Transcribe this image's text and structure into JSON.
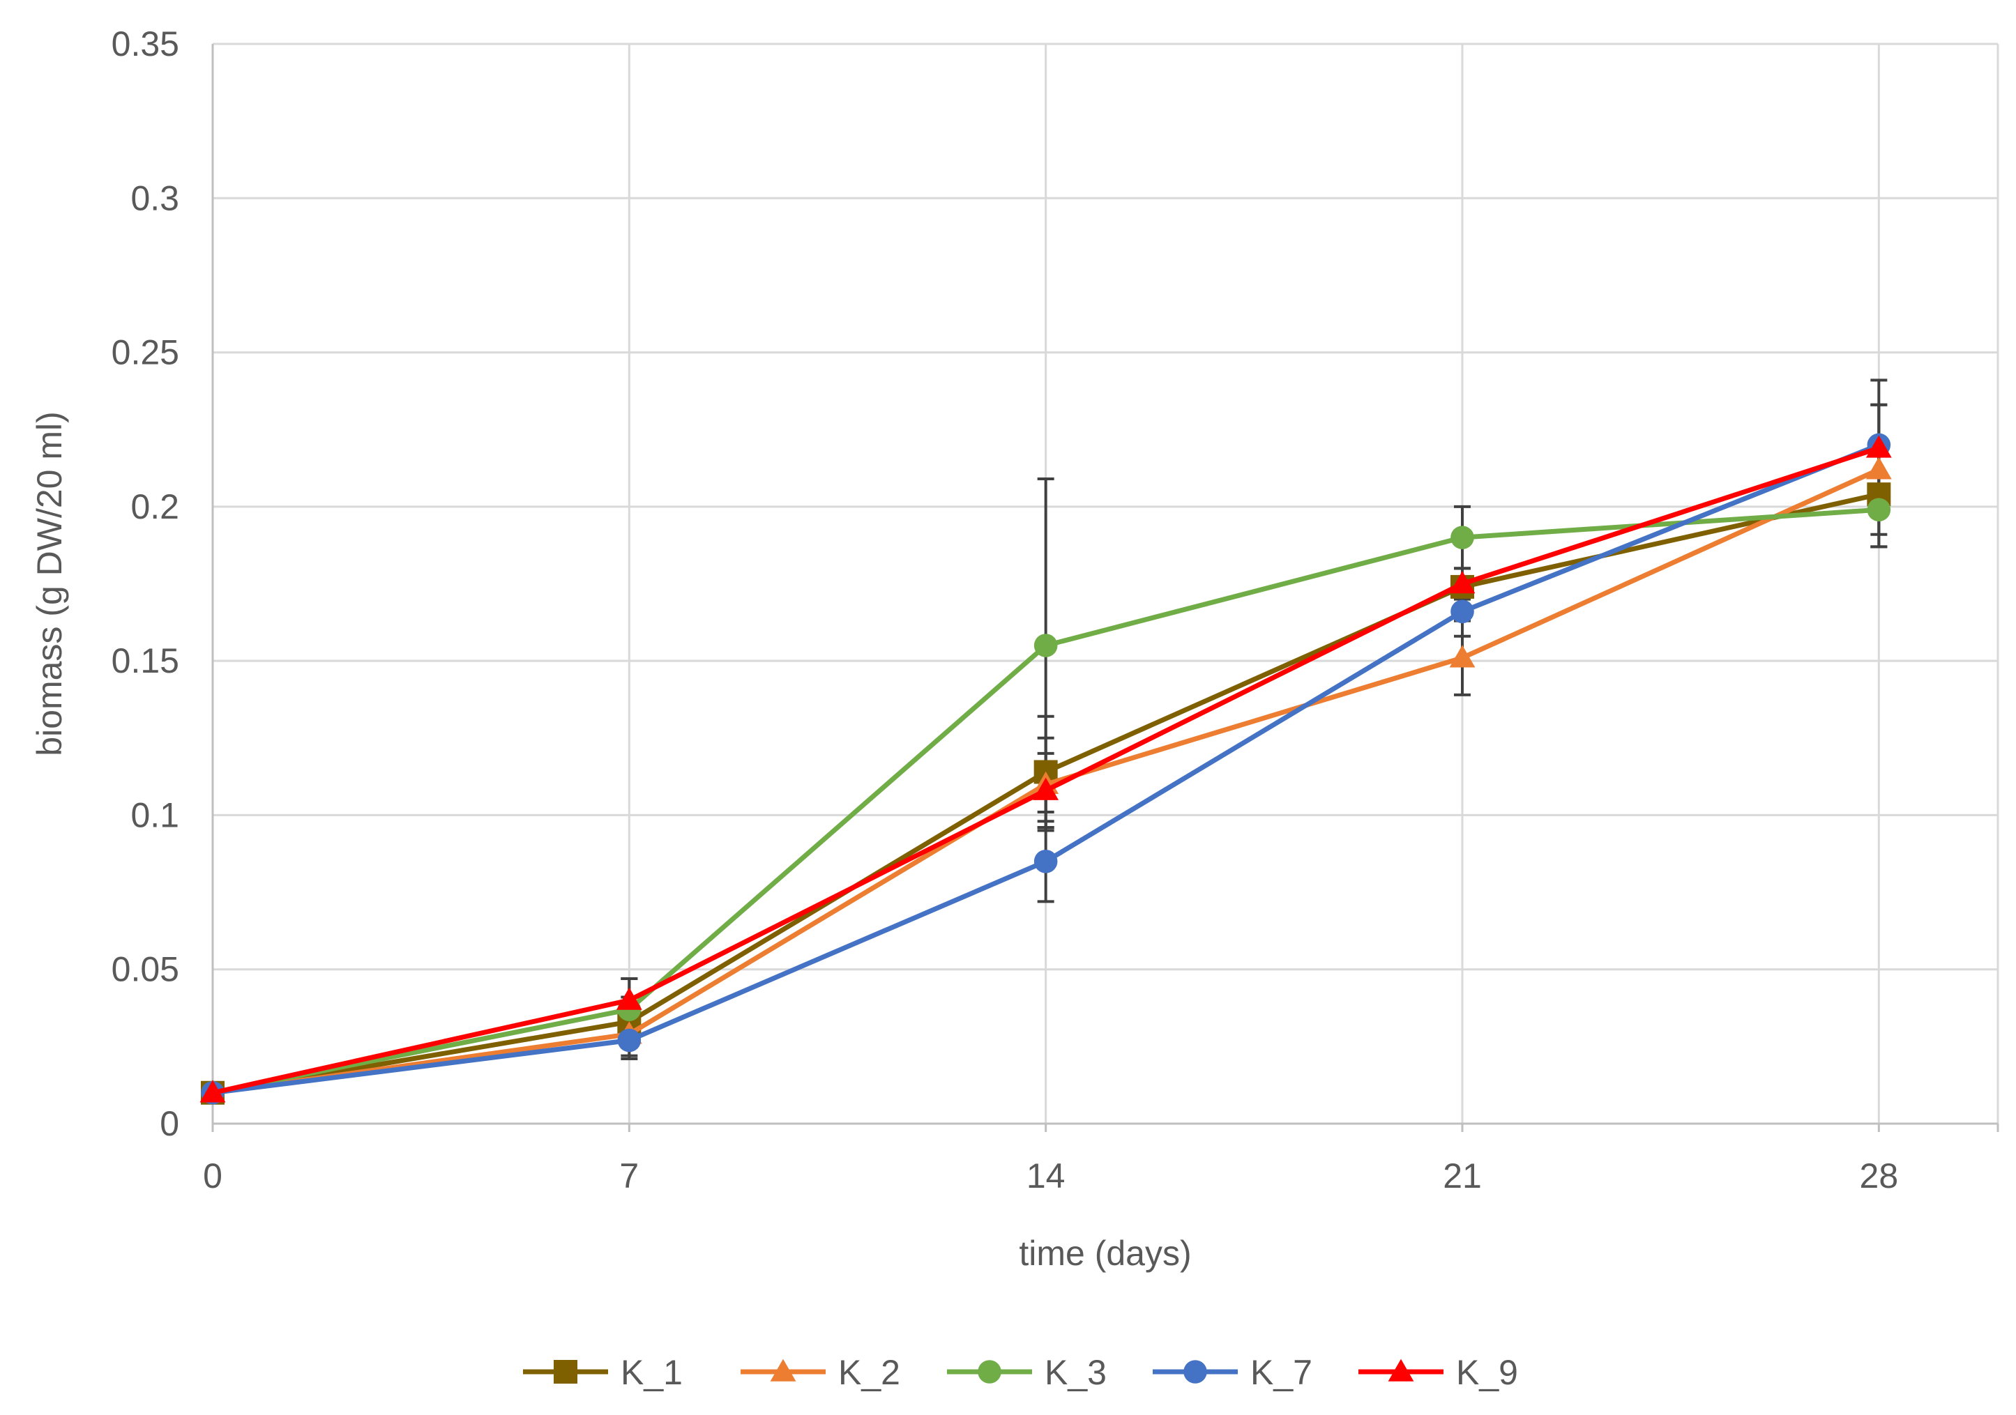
{
  "chart_data": {
    "type": "line",
    "xlabel": "time (days)",
    "ylabel": "biomass (g DW/20 ml)",
    "x": [
      0,
      7,
      14,
      21,
      28
    ],
    "xlim": [
      0,
      30
    ],
    "ylim": [
      0,
      0.35
    ],
    "x_ticks": [
      0,
      7,
      14,
      21,
      28
    ],
    "y_ticks": [
      0,
      0.05,
      0.1,
      0.15,
      0.2,
      0.25,
      0.3,
      0.35
    ],
    "x_tick_labels": [
      "0",
      "7",
      "14",
      "21",
      "28"
    ],
    "y_tick_labels": [
      "0",
      "0.05",
      "0.1",
      "0.15",
      "0.2",
      "0.25",
      "0.3",
      "0.35"
    ],
    "grid": true,
    "legend_position": "bottom",
    "series": [
      {
        "name": "K_1",
        "color": "#7F6000",
        "marker": "square",
        "values": [
          0.01,
          0.033,
          0.114,
          0.174,
          0.204
        ],
        "errors": [
          0.0,
          0.008,
          0.018,
          0.006,
          0.017
        ]
      },
      {
        "name": "K_2",
        "color": "#ED7D31",
        "marker": "triangle",
        "values": [
          0.01,
          0.029,
          0.11,
          0.151,
          0.212
        ],
        "errors": [
          0.0,
          0.008,
          0.015,
          0.012,
          0.021
        ]
      },
      {
        "name": "K_3",
        "color": "#70AD47",
        "marker": "circle",
        "values": [
          0.01,
          0.037,
          0.155,
          0.19,
          0.199
        ],
        "errors": [
          0.0,
          0.01,
          0.054,
          0.01,
          0.012
        ]
      },
      {
        "name": "K_7",
        "color": "#4472C4",
        "marker": "circle",
        "values": [
          0.01,
          0.027,
          0.085,
          0.166,
          0.22
        ],
        "errors": [
          0.0,
          0.005,
          0.013,
          0.008,
          0.013
        ]
      },
      {
        "name": "K_9",
        "color": "#FF0000",
        "marker": "triangle",
        "values": [
          0.01,
          0.04,
          0.108,
          0.175,
          0.219
        ],
        "errors": [
          0.0,
          0.007,
          0.012,
          0.005,
          0.022
        ]
      }
    ]
  }
}
